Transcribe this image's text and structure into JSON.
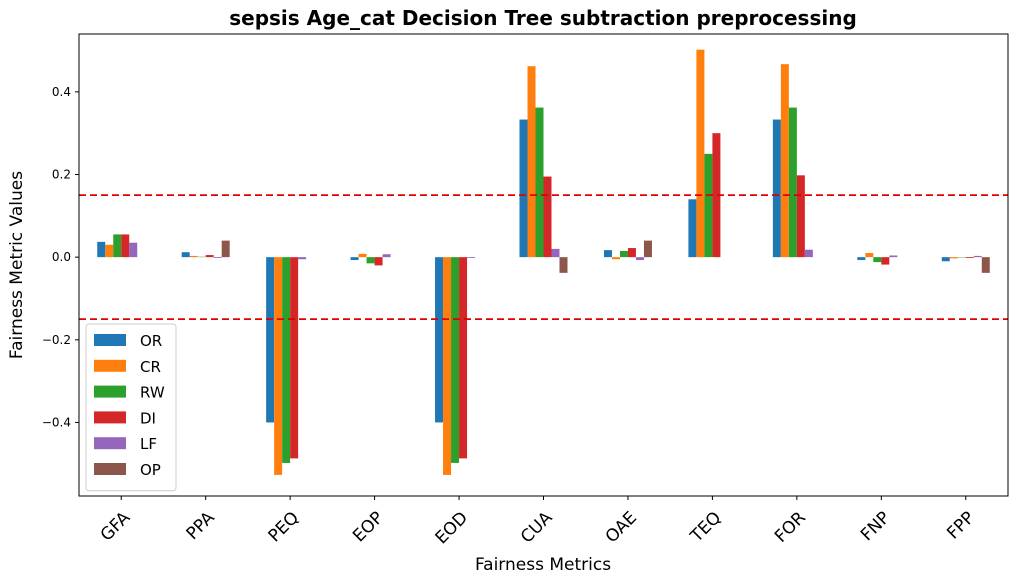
{
  "chart_data": {
    "type": "bar",
    "title": "sepsis Age_cat Decision Tree subtraction preprocessing",
    "xlabel": "Fairness Metrics",
    "ylabel": "Fairness Metric Values",
    "ylim": [
      -0.578,
      0.54
    ],
    "yticks": [
      -0.4,
      -0.2,
      0.0,
      0.2,
      0.4
    ],
    "ytick_labels": [
      "−0.4",
      "−0.2",
      "0.0",
      "0.2",
      "0.4"
    ],
    "categories": [
      "GFA",
      "PPA",
      "PEQ",
      "EOP",
      "EOD",
      "CUA",
      "OAE",
      "TEQ",
      "FOR",
      "FNP",
      "FPP"
    ],
    "series": [
      {
        "name": "OR",
        "color": "#1f77b4",
        "values": [
          0.037,
          0.012,
          -0.4,
          -0.007,
          -0.4,
          0.333,
          0.017,
          0.14,
          0.333,
          -0.007,
          -0.01
        ]
      },
      {
        "name": "CR",
        "color": "#ff7f0e",
        "values": [
          0.03,
          0.003,
          -0.527,
          0.008,
          -0.527,
          0.462,
          -0.005,
          0.502,
          0.467,
          0.01,
          -0.003
        ]
      },
      {
        "name": "RW",
        "color": "#2ca02c",
        "values": [
          0.055,
          0.001,
          -0.498,
          -0.015,
          -0.498,
          0.362,
          0.015,
          0.25,
          0.362,
          -0.012,
          -0.001
        ]
      },
      {
        "name": "DI",
        "color": "#d62728",
        "values": [
          0.055,
          0.005,
          -0.487,
          -0.02,
          -0.487,
          0.195,
          0.022,
          0.3,
          0.198,
          -0.018,
          -0.002
        ]
      },
      {
        "name": "LF",
        "color": "#9467bd",
        "values": [
          0.035,
          -0.002,
          -0.005,
          0.007,
          -0.002,
          0.02,
          -0.007,
          0.0,
          0.018,
          0.004,
          0.003
        ]
      },
      {
        "name": "OP",
        "color": "#8c564b",
        "values": [
          0.0,
          0.04,
          0.0,
          0.0,
          0.0,
          -0.038,
          0.04,
          0.0,
          0.0,
          0.0,
          -0.038
        ]
      }
    ],
    "reference_lines": [
      0.15,
      -0.15
    ],
    "reference_line_color": "#e00000",
    "legend_position": "lower-left",
    "grid": false
  }
}
